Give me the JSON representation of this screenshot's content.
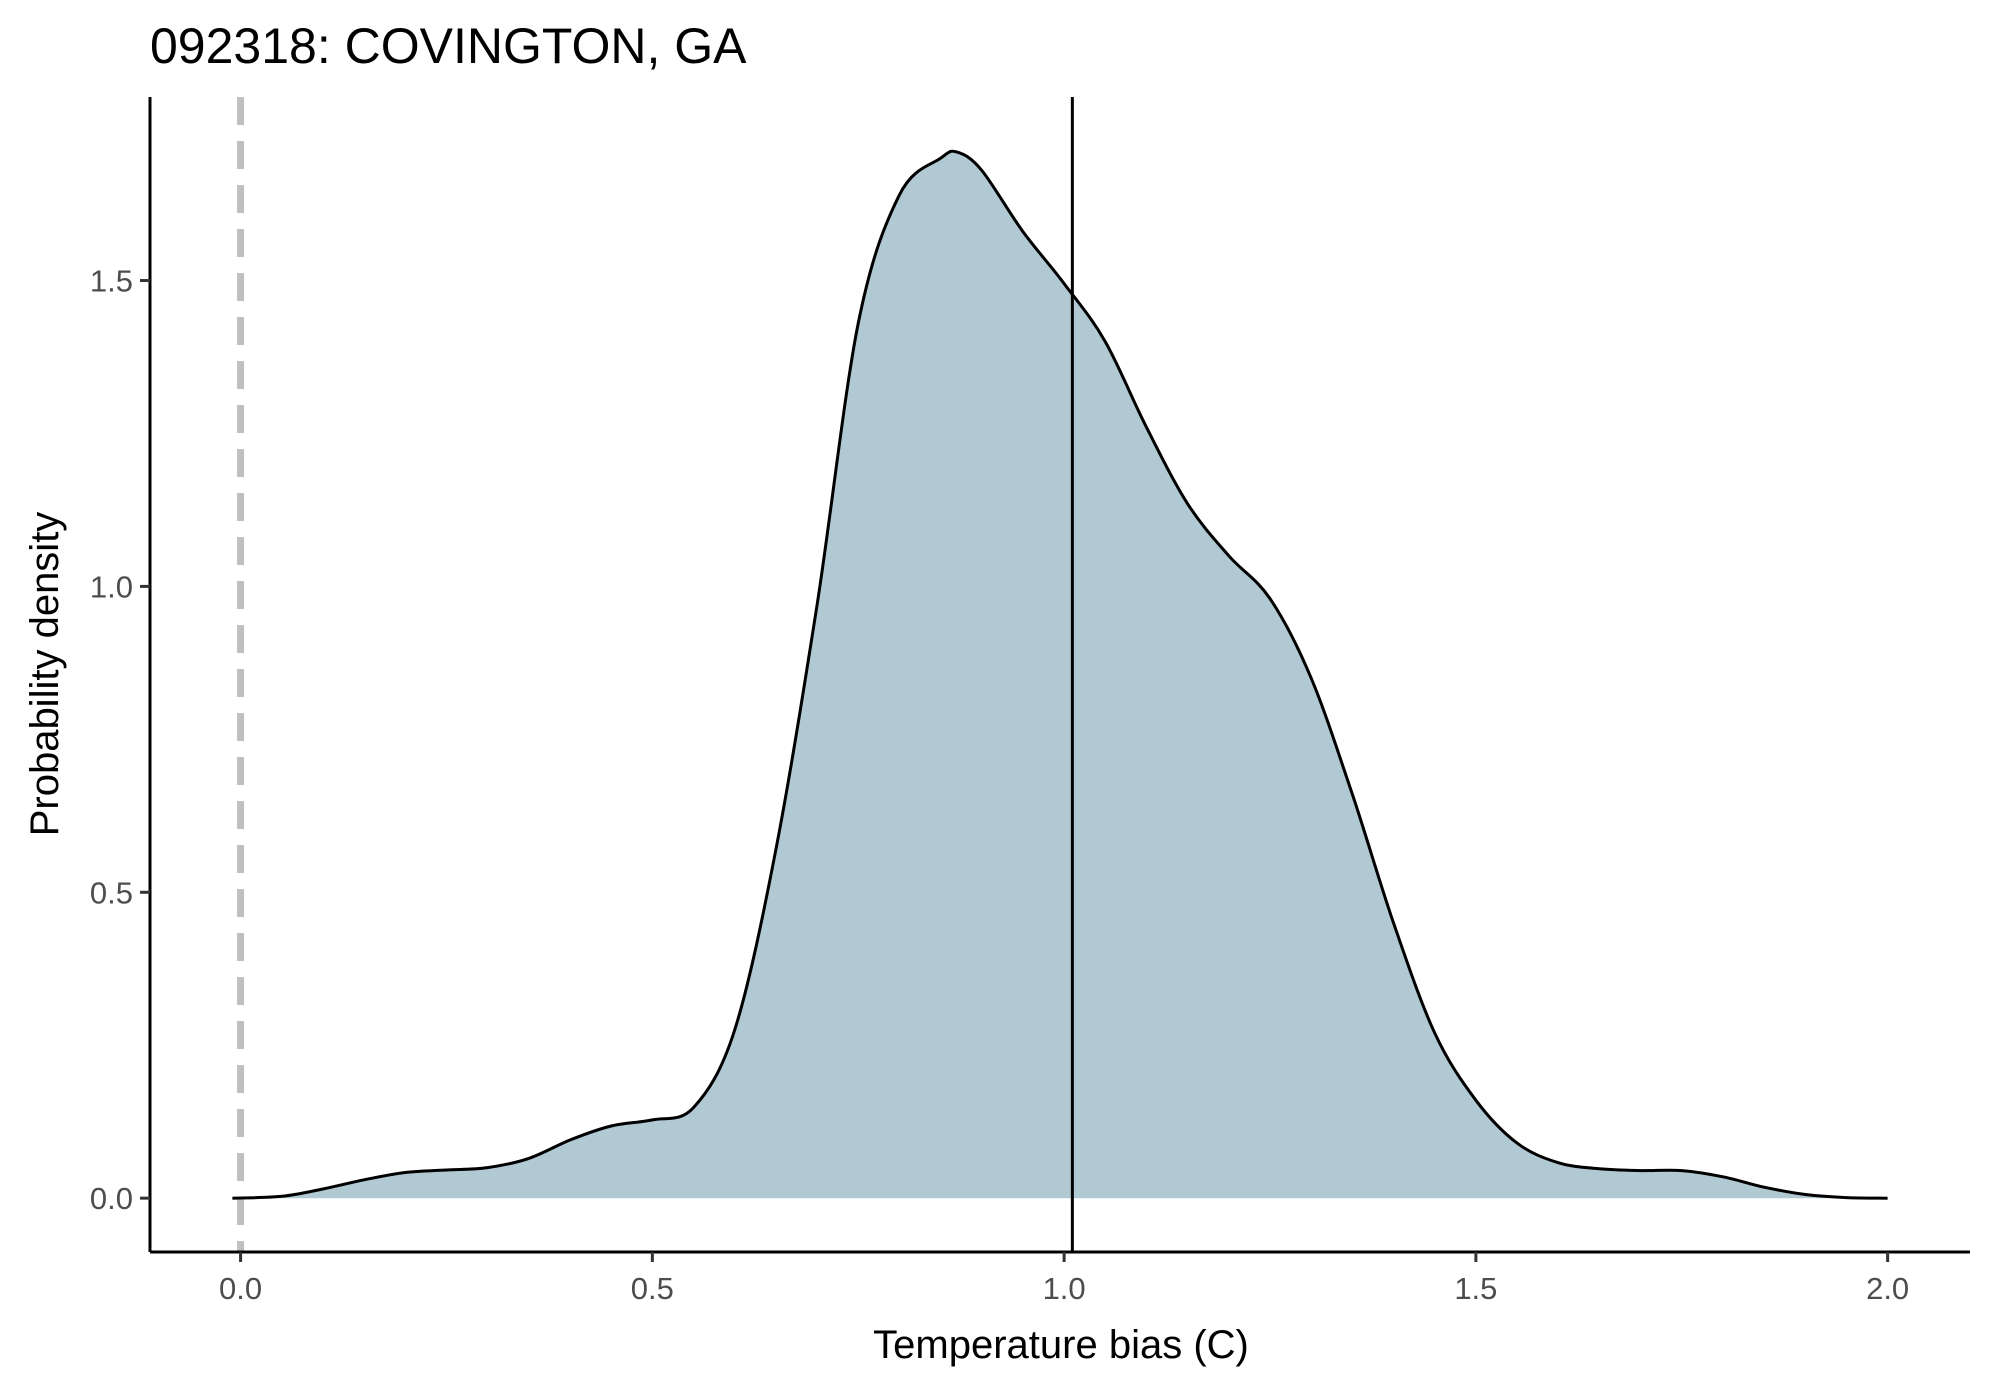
{
  "chart_data": {
    "type": "area",
    "title": "092318: COVINGTON, GA",
    "xlabel": "Temperature bias (C)",
    "ylabel": "Probability density",
    "xlim": [
      -0.11,
      2.1
    ],
    "ylim": [
      -0.088,
      1.8
    ],
    "x_ticks": [
      0.0,
      0.5,
      1.0,
      1.5,
      2.0
    ],
    "x_tick_labels": [
      "0.0",
      "0.5",
      "1.0",
      "1.5",
      "2.0"
    ],
    "y_ticks": [
      0.0,
      0.5,
      1.0,
      1.5
    ],
    "y_tick_labels": [
      "0.0",
      "0.5",
      "1.0",
      "1.5"
    ],
    "grid": false,
    "legend": "none",
    "series": [
      {
        "x": [
          -0.01,
          0.05,
          0.1,
          0.15,
          0.2,
          0.25,
          0.3,
          0.35,
          0.4,
          0.45,
          0.5,
          0.55,
          0.6,
          0.65,
          0.7,
          0.75,
          0.8,
          0.85,
          0.87,
          0.9,
          0.95,
          1.0,
          1.05,
          1.1,
          1.15,
          1.2,
          1.25,
          1.3,
          1.35,
          1.4,
          1.45,
          1.5,
          1.55,
          1.6,
          1.65,
          1.7,
          1.75,
          1.8,
          1.85,
          1.9,
          1.95,
          2.0
        ],
        "y": [
          0.0,
          0.003,
          0.015,
          0.03,
          0.042,
          0.046,
          0.05,
          0.065,
          0.095,
          0.118,
          0.128,
          0.148,
          0.275,
          0.57,
          0.97,
          1.43,
          1.64,
          1.7,
          1.71,
          1.68,
          1.58,
          1.495,
          1.4,
          1.26,
          1.135,
          1.05,
          0.98,
          0.85,
          0.66,
          0.45,
          0.27,
          0.16,
          0.09,
          0.058,
          0.048,
          0.045,
          0.045,
          0.035,
          0.018,
          0.006,
          0.001,
          0.0
        ]
      }
    ],
    "reference_lines": [
      {
        "axis": "x",
        "value": 0.0,
        "style": "dashed",
        "color": "#bfbfbf"
      },
      {
        "axis": "x",
        "value": 1.01,
        "style": "solid",
        "color": "#000000"
      }
    ],
    "fill_color": "#b0c9d3",
    "line_color": "#000000"
  }
}
